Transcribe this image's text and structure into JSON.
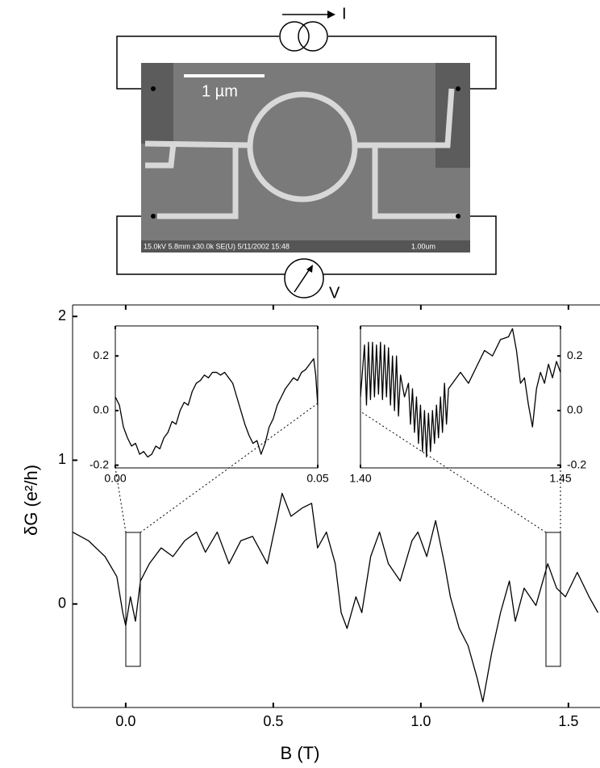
{
  "schematic": {
    "scale_bar": "1 µm",
    "current_label": "I",
    "voltage_label": "V",
    "sem_info": "15.0kV 5.8mm x30.0k SE(U) 5/11/2002 15:48",
    "sem_scale": "1.00um"
  },
  "chart_data": [
    {
      "type": "line",
      "x_label": "B (T)",
      "y_label": "δG (e²/h)",
      "color": "#000000",
      "xlim": [
        -0.18,
        1.607
      ],
      "ylim": [
        -0.72,
        2.08
      ],
      "xticks": [
        {
          "value": 0,
          "label": "0.0"
        },
        0.5,
        {
          "value": 1,
          "label": "1.0"
        },
        1.5
      ],
      "yticks": [
        0,
        1,
        2
      ],
      "x": [
        -0.18,
        -0.126,
        -0.07,
        -0.03,
        -0.01,
        0.0,
        0.016,
        0.033,
        0.05,
        0.08,
        0.12,
        0.16,
        0.2,
        0.24,
        0.27,
        0.31,
        0.35,
        0.39,
        0.43,
        0.48,
        0.52,
        0.53,
        0.56,
        0.6,
        0.63,
        0.65,
        0.68,
        0.71,
        0.73,
        0.75,
        0.78,
        0.8,
        0.83,
        0.86,
        0.89,
        0.93,
        0.97,
        0.99,
        1.02,
        1.05,
        1.08,
        1.1,
        1.13,
        1.16,
        1.19,
        1.21,
        1.24,
        1.27,
        1.3,
        1.32,
        1.35,
        1.39,
        1.43,
        1.46,
        1.49,
        1.53,
        1.57,
        1.6
      ],
      "values": [
        0.5,
        0.44,
        0.33,
        0.19,
        -0.06,
        -0.15,
        0.05,
        -0.12,
        0.16,
        0.28,
        0.39,
        0.33,
        0.44,
        0.5,
        0.36,
        0.5,
        0.28,
        0.44,
        0.47,
        0.28,
        0.67,
        0.77,
        0.61,
        0.67,
        0.7,
        0.39,
        0.5,
        0.28,
        -0.06,
        -0.17,
        0.05,
        -0.06,
        0.33,
        0.5,
        0.28,
        0.16,
        0.44,
        0.5,
        0.33,
        0.58,
        0.28,
        0.05,
        -0.17,
        -0.29,
        -0.51,
        -0.68,
        -0.34,
        -0.06,
        0.16,
        -0.12,
        0.11,
        -0.01,
        0.28,
        0.11,
        0.05,
        0.22,
        0.05,
        -0.06
      ]
    },
    {
      "type": "line",
      "color": "#000000",
      "xlim": [
        0,
        0.05
      ],
      "ylim": [
        -0.21,
        0.31
      ],
      "xticks": [
        {
          "value": 0,
          "label": "0.00"
        },
        0.05
      ],
      "yticks": [
        -0.2,
        {
          "value": 0,
          "label": "0.0"
        },
        0.2
      ],
      "x": [
        0,
        0.001,
        0.002,
        0.003,
        0.004,
        0.005,
        0.006,
        0.007,
        0.008,
        0.009,
        0.01,
        0.011,
        0.012,
        0.013,
        0.014,
        0.015,
        0.016,
        0.017,
        0.018,
        0.019,
        0.02,
        0.021,
        0.022,
        0.023,
        0.024,
        0.025,
        0.026,
        0.027,
        0.028,
        0.029,
        0.03,
        0.031,
        0.032,
        0.033,
        0.034,
        0.035,
        0.036,
        0.037,
        0.038,
        0.039,
        0.04,
        0.041,
        0.042,
        0.043,
        0.044,
        0.045,
        0.046,
        0.047,
        0.048,
        0.049,
        0.0495,
        0.05
      ],
      "values": [
        0.05,
        0.02,
        -0.06,
        -0.1,
        -0.13,
        -0.12,
        -0.16,
        -0.15,
        -0.17,
        -0.16,
        -0.13,
        -0.14,
        -0.1,
        -0.08,
        -0.04,
        -0.05,
        0,
        0.03,
        0.02,
        0.07,
        0.1,
        0.11,
        0.13,
        0.12,
        0.14,
        0.14,
        0.13,
        0.14,
        0.12,
        0.1,
        0.05,
        0,
        -0.05,
        -0.09,
        -0.12,
        -0.11,
        -0.16,
        -0.12,
        -0.06,
        -0.03,
        0.02,
        0.05,
        0.08,
        0.1,
        0.12,
        0.11,
        0.14,
        0.15,
        0.17,
        0.19,
        0.13,
        0.02
      ]
    },
    {
      "type": "line",
      "color": "#000000",
      "xlim": [
        1.4,
        1.45
      ],
      "ylim": [
        -0.21,
        0.31
      ],
      "xticks": [
        {
          "value": 1.4,
          "label": "1.40"
        },
        1.45
      ],
      "yticks": [
        -0.2,
        {
          "value": 0,
          "label": "0.0"
        },
        0.2
      ],
      "x": [
        1.4,
        1.401,
        1.4015,
        1.402,
        1.4025,
        1.403,
        1.4035,
        1.404,
        1.4045,
        1.405,
        1.4055,
        1.406,
        1.4065,
        1.407,
        1.4075,
        1.408,
        1.4085,
        1.409,
        1.4095,
        1.41,
        1.411,
        1.412,
        1.4125,
        1.413,
        1.4135,
        1.414,
        1.4145,
        1.415,
        1.4155,
        1.416,
        1.4165,
        1.417,
        1.4175,
        1.418,
        1.4185,
        1.419,
        1.4195,
        1.42,
        1.4205,
        1.421,
        1.4215,
        1.422,
        1.423,
        1.425,
        1.427,
        1.429,
        1.431,
        1.433,
        1.435,
        1.437,
        1.438,
        1.439,
        1.44,
        1.441,
        1.442,
        1.443,
        1.444,
        1.445,
        1.446,
        1.447,
        1.448,
        1.449,
        1.45
      ],
      "values": [
        0.05,
        0.24,
        0.02,
        0.25,
        0.04,
        0.25,
        0.05,
        0.24,
        0.06,
        0.25,
        0.04,
        0.24,
        0.05,
        0.23,
        0.02,
        0.2,
        0,
        0.2,
        -0.02,
        0.13,
        0.05,
        0.1,
        -0.05,
        0.08,
        -0.08,
        0.05,
        -0.12,
        0.02,
        -0.15,
        0,
        -0.17,
        -0.01,
        -0.15,
        0,
        -0.12,
        0.02,
        -0.1,
        0.05,
        -0.08,
        0.1,
        -0.05,
        0.08,
        0.1,
        0.14,
        0.1,
        0.16,
        0.22,
        0.2,
        0.26,
        0.27,
        0.3,
        0.22,
        0.1,
        0.12,
        0.02,
        -0.06,
        0.08,
        0.14,
        0.1,
        0.17,
        0.12,
        0.18,
        0.14
      ]
    }
  ]
}
